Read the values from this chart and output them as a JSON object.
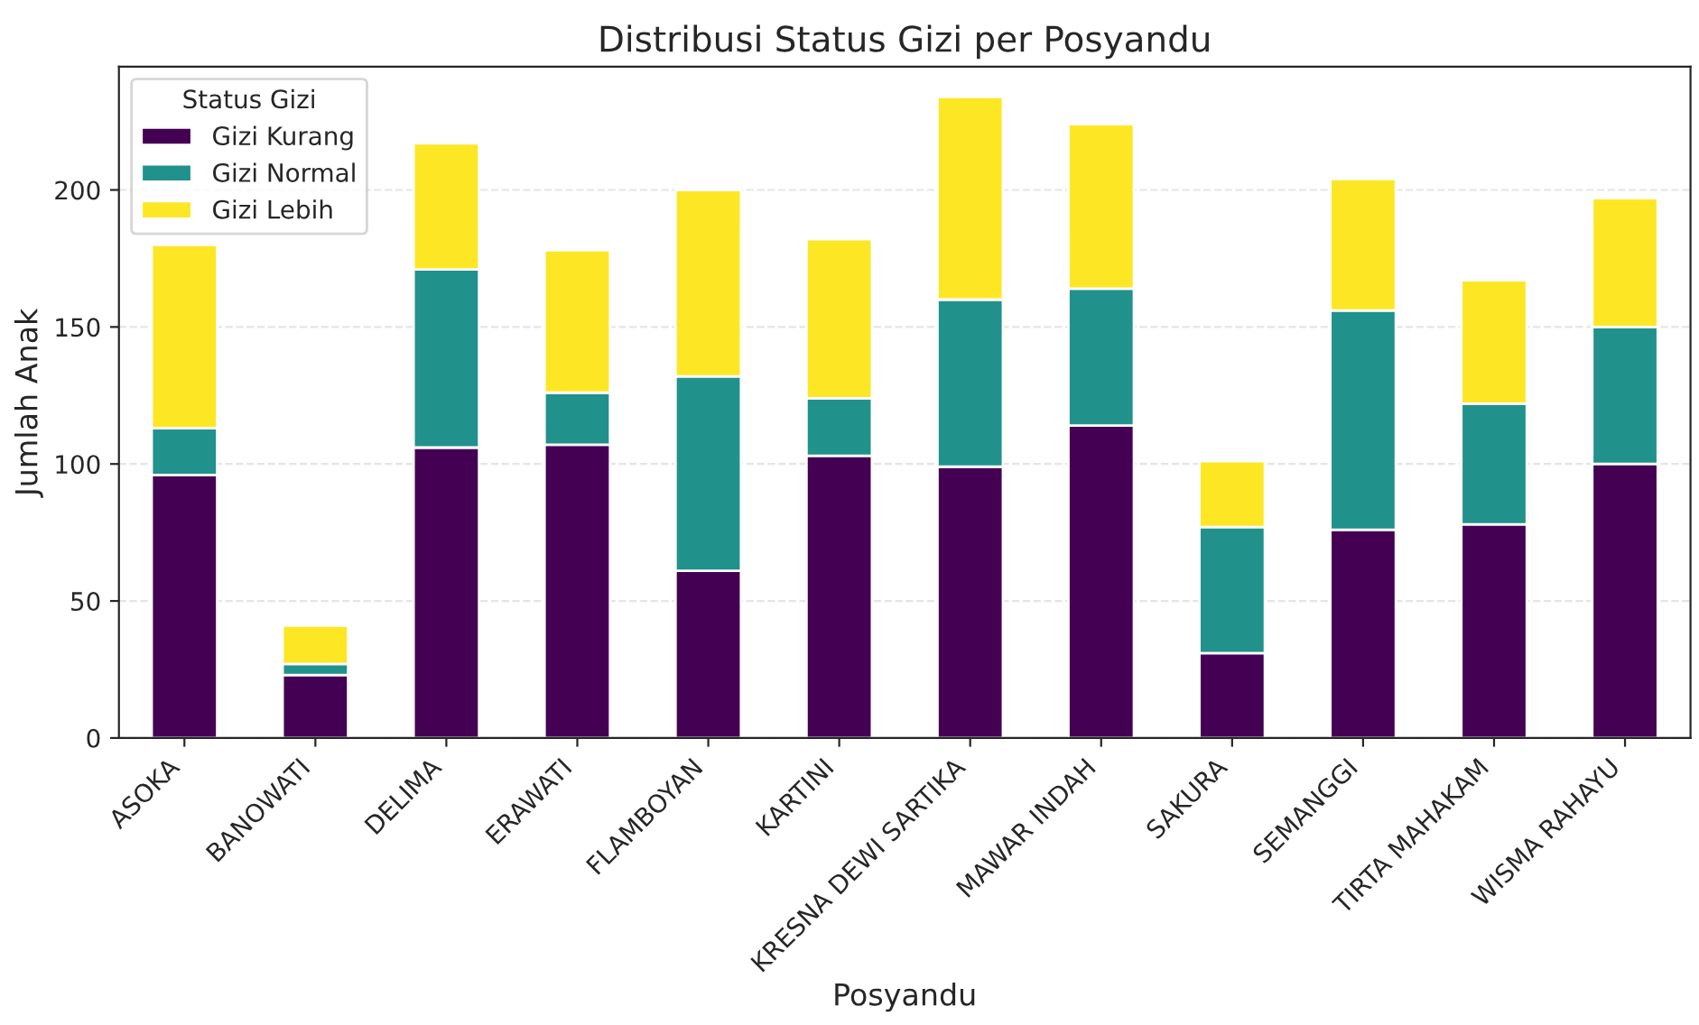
{
  "chart_data": {
    "type": "bar",
    "stacked": true,
    "title": "Distribusi Status Gizi per Posyandu",
    "xlabel": "Posyandu",
    "ylabel": "Jumlah Anak",
    "legend_title": "Status Gizi",
    "legend": "top left",
    "grid": "y",
    "categories": [
      "ASOKA",
      "BANOWATI",
      "DELIMA",
      "ERAWATI",
      "FLAMBOYAN",
      "KARTINI",
      "KRESNA DEWI SARTIKA",
      "MAWAR INDAH",
      "SAKURA",
      "SEMANGGI",
      "TIRTA MAHAKAM",
      "WISMA RAHAYU"
    ],
    "series": [
      {
        "name": "Gizi Kurang",
        "color": "#440154",
        "values": [
          96,
          23,
          106,
          107,
          61,
          103,
          99,
          114,
          31,
          76,
          78,
          100
        ]
      },
      {
        "name": "Gizi Normal",
        "color": "#21918c",
        "values": [
          17,
          4,
          65,
          19,
          71,
          21,
          61,
          50,
          46,
          80,
          44,
          50
        ]
      },
      {
        "name": "Gizi Lebih",
        "color": "#fde725",
        "values": [
          67,
          14,
          46,
          52,
          68,
          58,
          74,
          60,
          24,
          48,
          45,
          47
        ]
      }
    ],
    "ylim": [
      0,
      245
    ],
    "yticks": [
      0,
      50,
      100,
      150,
      200
    ]
  }
}
